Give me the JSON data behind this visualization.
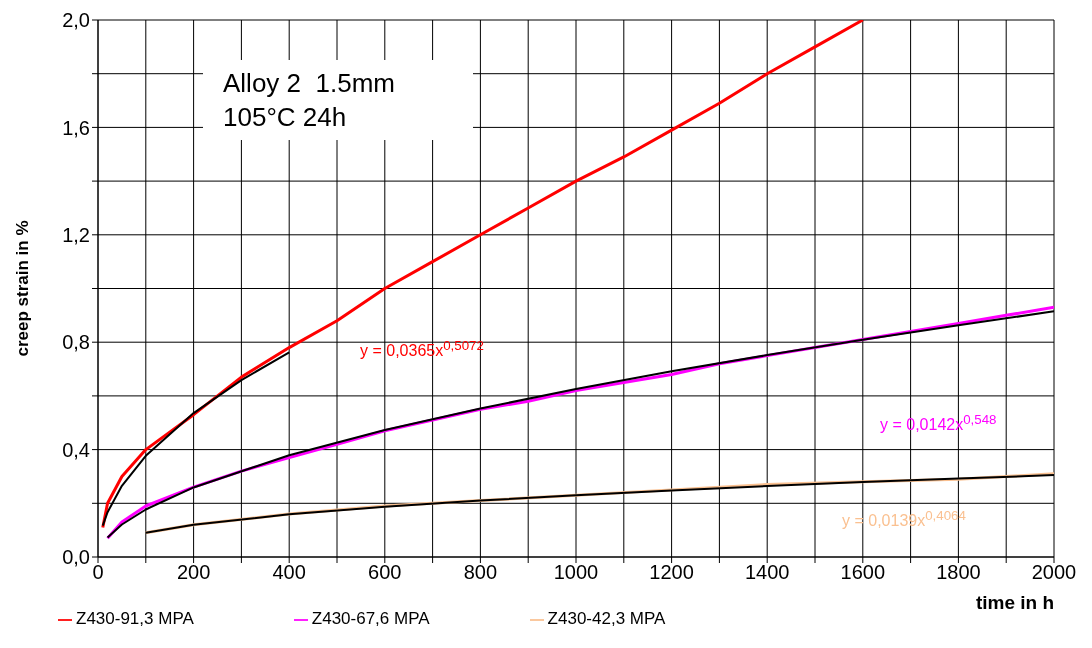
{
  "chart_data": {
    "type": "line",
    "xlabel": "time in h",
    "ylabel": "creep strain in %",
    "xlim": [
      0,
      2000
    ],
    "xticks": [
      0,
      {
        "value": 100,
        "label": null
      },
      200,
      {
        "value": 300,
        "label": null
      },
      400,
      {
        "value": 500,
        "label": null
      },
      600,
      {
        "value": 700,
        "label": null
      },
      800,
      {
        "value": 900,
        "label": null
      },
      1000,
      {
        "value": 1100,
        "label": null
      },
      1200,
      {
        "value": 1300,
        "label": null
      },
      1400,
      {
        "value": 1500,
        "label": null
      },
      1600,
      {
        "value": 1700,
        "label": null
      },
      1800,
      {
        "value": 1900,
        "label": null
      },
      2000
    ],
    "ylim": [
      0,
      2
    ],
    "yticks": [
      {
        "value": 0,
        "label": "0,0"
      },
      {
        "value": 0.2,
        "label": null
      },
      {
        "value": 0.4,
        "label": "0,4"
      },
      {
        "value": 0.6,
        "label": null
      },
      {
        "value": 0.8,
        "label": "0,8"
      },
      {
        "value": 1,
        "label": null
      },
      {
        "value": 1.2,
        "label": "1,2"
      },
      {
        "value": 1.4,
        "label": null
      },
      {
        "value": 1.6,
        "label": "1,6"
      },
      {
        "value": 1.8,
        "label": null
      },
      {
        "value": 2,
        "label": "2,0"
      }
    ],
    "grid": true,
    "legend": "bottom left",
    "marker": "none",
    "line_style": "solid",
    "annotations": [
      "Alloy 2  1.5mm\n105°C 24h",
      "y = 0,0365x$^{0,5072}$",
      "y = 0,0142x$^{0,548}$",
      "y = 0,0139x$^{0,4064}$"
    ],
    "series": [
      {
        "name": "Z430-91,3 MPA",
        "color": "#ff0000",
        "x": [
          10,
          20,
          50,
          100,
          200,
          300,
          400,
          500,
          600,
          700,
          800,
          900,
          1000,
          1100,
          1200,
          1300,
          1400,
          1500,
          1600
        ],
        "values": [
          0.11,
          0.2,
          0.3,
          0.4,
          0.53,
          0.67,
          0.78,
          0.88,
          1.0,
          1.1,
          1.2,
          1.3,
          1.4,
          1.49,
          1.59,
          1.69,
          1.8,
          1.9,
          2.0
        ]
      },
      {
        "name": "Z430-67,6 MPA",
        "color": "#ff00ff",
        "x": [
          20,
          50,
          100,
          200,
          300,
          400,
          500,
          600,
          700,
          800,
          900,
          1000,
          1100,
          1200,
          1300,
          1400,
          1500,
          1600,
          1700,
          1800,
          1900,
          2000
        ],
        "values": [
          0.07,
          0.13,
          0.19,
          0.26,
          0.32,
          0.37,
          0.42,
          0.47,
          0.51,
          0.55,
          0.58,
          0.62,
          0.65,
          0.68,
          0.72,
          0.75,
          0.78,
          0.81,
          0.84,
          0.87,
          0.9,
          0.93
        ]
      },
      {
        "name": "Z430-42,3 MPA",
        "color": "#fac090",
        "x": [
          100,
          200,
          400,
          600,
          800,
          1000,
          1200,
          1400,
          1600,
          1800,
          2000
        ],
        "values": [
          0.09,
          0.12,
          0.16,
          0.19,
          0.21,
          0.23,
          0.25,
          0.27,
          0.28,
          0.29,
          0.31
        ]
      },
      {
        "type": "line",
        "color": "#000000",
        "x": [
          10,
          20,
          50,
          100,
          200,
          300,
          400
        ],
        "values": [
          0.117,
          0.167,
          0.265,
          0.377,
          0.536,
          0.659,
          0.762
        ]
      },
      {
        "type": "line",
        "color": "#000000",
        "x": [
          20,
          50,
          100,
          200,
          400,
          600,
          800,
          1000,
          1200,
          1400,
          1600,
          1800,
          2000
        ],
        "values": [
          0.073,
          0.121,
          0.177,
          0.259,
          0.379,
          0.473,
          0.553,
          0.626,
          0.692,
          0.752,
          0.809,
          0.863,
          0.915
        ]
      },
      {
        "type": "line",
        "color": "#000000",
        "x": [
          100,
          200,
          400,
          600,
          800,
          1000,
          1200,
          1400,
          1600,
          1800,
          2000
        ],
        "values": [
          0.09,
          0.12,
          0.159,
          0.187,
          0.21,
          0.23,
          0.248,
          0.264,
          0.279,
          0.292,
          0.305
        ]
      }
    ]
  }
}
